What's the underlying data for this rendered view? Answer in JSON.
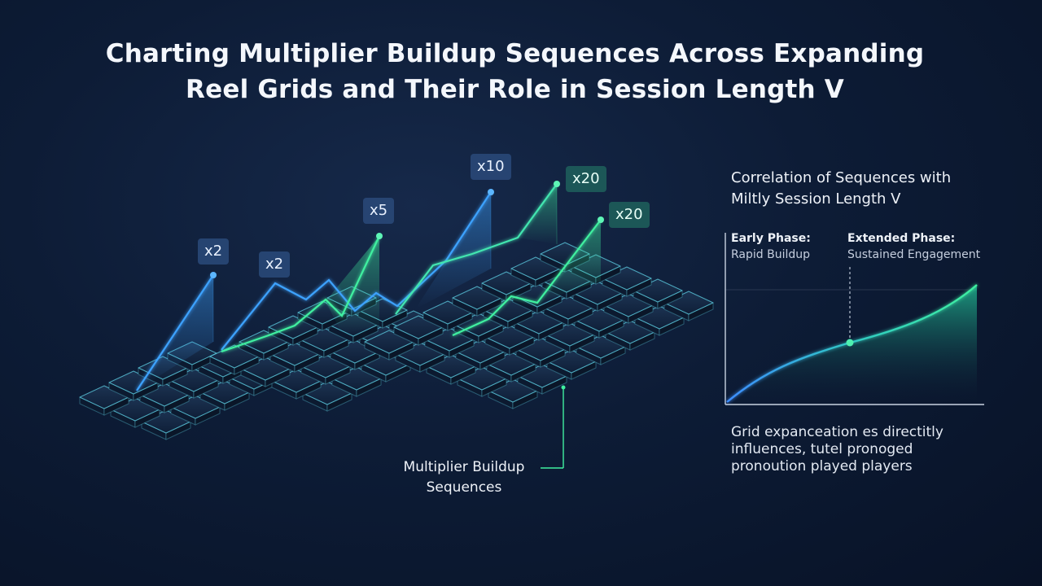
{
  "title": {
    "line1": "Charting Multiplier Buildup Sequences Across Expanding",
    "line2": "Reel Grids and Their Role in Session Length V"
  },
  "multipliers": [
    {
      "label": "x2",
      "tone": "blue"
    },
    {
      "label": "x2",
      "tone": "blue"
    },
    {
      "label": "x5",
      "tone": "blue"
    },
    {
      "label": "x10",
      "tone": "blue"
    },
    {
      "label": "x20",
      "tone": "green"
    },
    {
      "label": "x20",
      "tone": "green"
    }
  ],
  "callout": {
    "line1": "Multiplier Buildup",
    "line2": "Sequences"
  },
  "side_panel": {
    "title_line1": "Correlation of Sequences with",
    "title_line2": "Miltly Session Length V",
    "phases": {
      "early_title": "Early Phase:",
      "early_sub": "Rapid Buildup",
      "extended_title": "Extended Phase:",
      "extended_sub": "Sustained Engagement"
    },
    "insight_line1": "Grid expanceation es directitly",
    "insight_line2": "influences, tutel pronoged",
    "insight_line3": "pronoution played players"
  },
  "colors": {
    "background": "#0b1830",
    "accent_blue": "#3da2ff",
    "accent_green": "#3ff0a0",
    "tile_stroke": "#5fd2e6"
  }
}
